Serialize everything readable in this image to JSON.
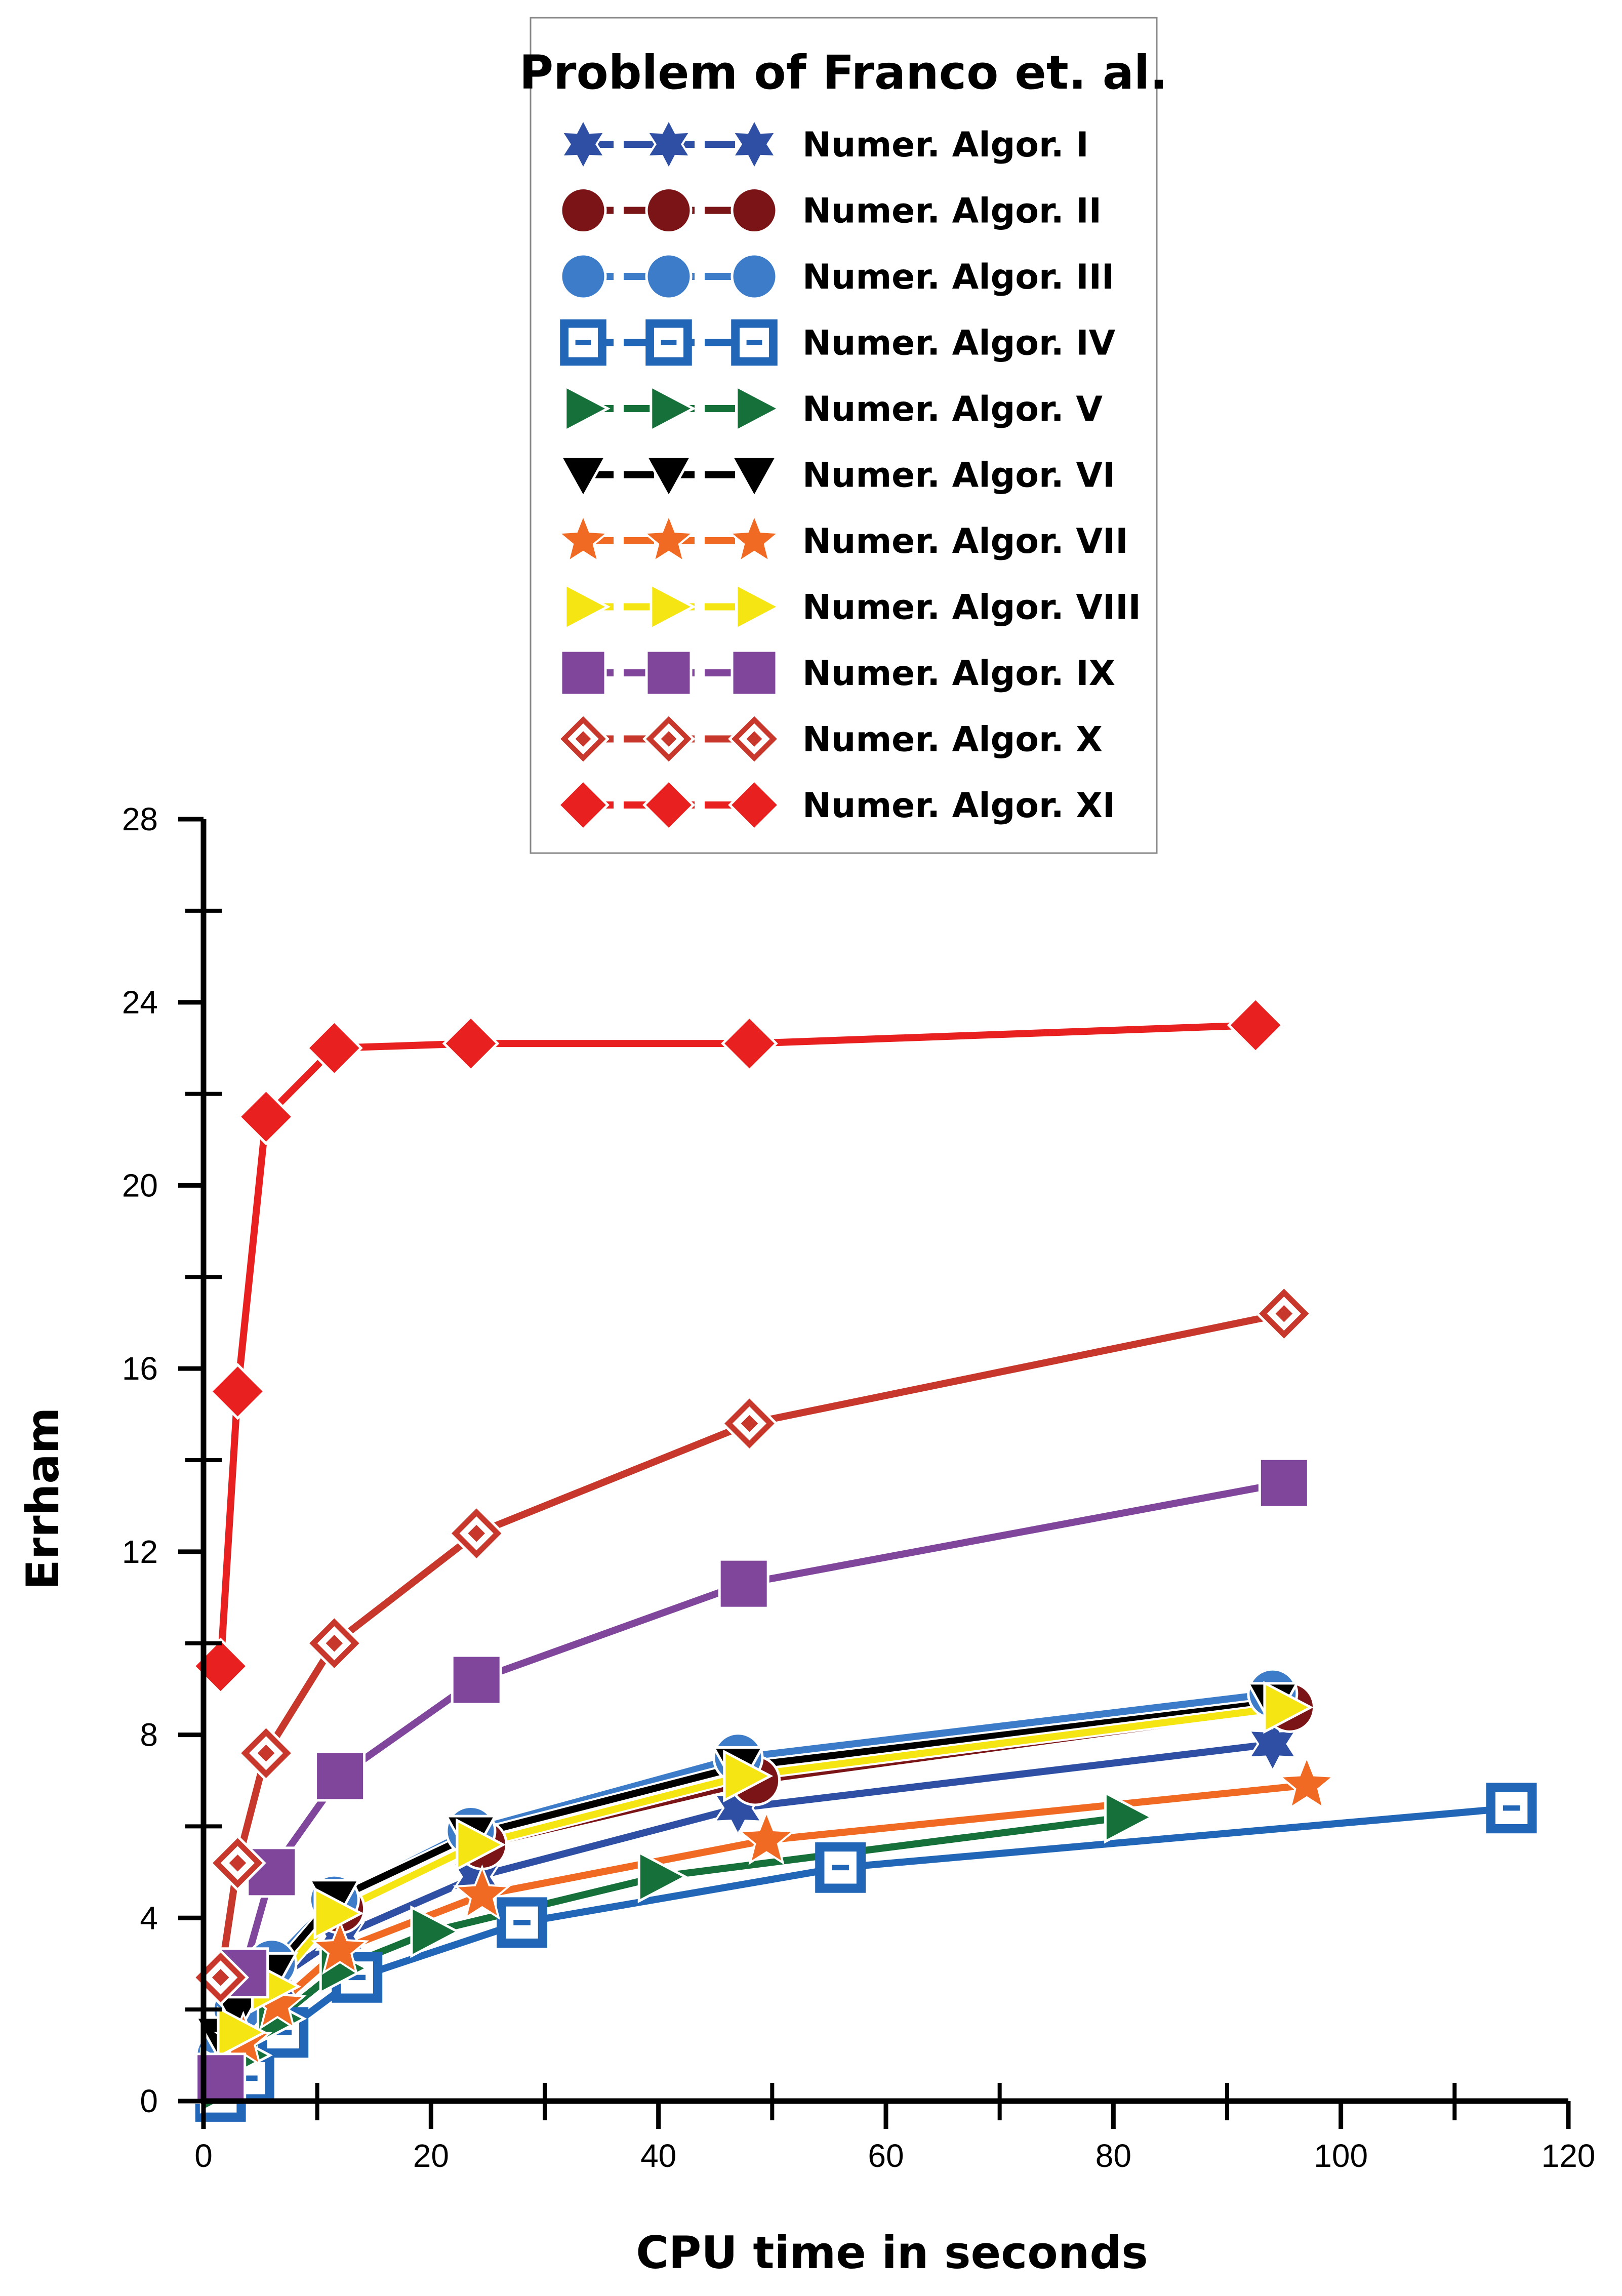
{
  "chart_data": {
    "type": "line",
    "title": "Problem of Franco et. al.",
    "xlabel": "CPU time in seconds",
    "ylabel": "Errham",
    "xlim": [
      0,
      120
    ],
    "ylim": [
      0,
      28
    ],
    "xticks": [
      0,
      20,
      40,
      60,
      80,
      100,
      120
    ],
    "yticks": [
      0,
      4,
      8,
      12,
      16,
      20,
      24,
      28
    ],
    "grid": false,
    "legend_position": "top-center",
    "series": [
      {
        "name": "Numer. Algor. I",
        "color": "#2E4FA3",
        "marker": "star6",
        "x": [
          1.5,
          3,
          6,
          12,
          24,
          47,
          94
        ],
        "y": [
          0.8,
          1.6,
          2.6,
          3.6,
          4.9,
          6.4,
          7.8
        ]
      },
      {
        "name": "Numer. Algor. II",
        "color": "#7B1416",
        "marker": "circle",
        "x": [
          1.5,
          3,
          6,
          12,
          24.5,
          48.5,
          95.5
        ],
        "y": [
          1.0,
          1.9,
          2.9,
          4.2,
          5.6,
          7.0,
          8.6
        ]
      },
      {
        "name": "Numer. Algor. III",
        "color": "#3D7CC9",
        "marker": "circle",
        "x": [
          1.5,
          3,
          6,
          11.5,
          23.5,
          47,
          94
        ],
        "y": [
          1.0,
          2.0,
          3.0,
          4.4,
          5.9,
          7.5,
          8.9
        ]
      },
      {
        "name": "Numer. Algor. IV",
        "color": "#2266B8",
        "marker": "square-open",
        "x": [
          1.5,
          4,
          7,
          13.5,
          28,
          56,
          115
        ],
        "y": [
          0.1,
          0.5,
          1.5,
          2.7,
          3.9,
          5.1,
          6.4
        ]
      },
      {
        "name": "Numer. Algor. V",
        "color": "#16703A",
        "marker": "triangle-right",
        "x": [
          1.5,
          3.5,
          6.5,
          12,
          20,
          40,
          81
        ],
        "y": [
          0.3,
          1.0,
          1.8,
          2.9,
          3.7,
          4.9,
          6.2
        ]
      },
      {
        "name": "Numer. Algor. VI",
        "color": "#000000",
        "marker": "triangle-down",
        "x": [
          1.5,
          3,
          6,
          11.5,
          23.5,
          47,
          94
        ],
        "y": [
          1.4,
          2.0,
          2.8,
          4.4,
          5.8,
          7.3,
          8.7
        ]
      },
      {
        "name": "Numer. Algor. VII",
        "color": "#F06A23",
        "marker": "star5",
        "x": [
          1.5,
          3.5,
          6.5,
          12,
          24.5,
          49.5,
          97
        ],
        "y": [
          0.5,
          1.3,
          2.1,
          3.3,
          4.5,
          5.7,
          6.9
        ]
      },
      {
        "name": "Numer. Algor. VIII",
        "color": "#F5E613",
        "marker": "triangle-right",
        "x": [
          1.5,
          3,
          6,
          11.5,
          24,
          47.5,
          95
        ],
        "y": [
          0.6,
          1.5,
          2.5,
          4.1,
          5.6,
          7.1,
          8.6
        ]
      },
      {
        "name": "Numer. Algor. IX",
        "color": "#7F469C",
        "marker": "square",
        "x": [
          1.5,
          3.5,
          6,
          12,
          24,
          47.5,
          95
        ],
        "y": [
          0.5,
          2.8,
          5.0,
          7.1,
          9.2,
          11.3,
          13.5
        ]
      },
      {
        "name": "Numer. Algor. X",
        "color": "#C8372B",
        "marker": "diamond-open",
        "x": [
          1.5,
          3,
          5.5,
          11.5,
          24,
          48,
          95
        ],
        "y": [
          2.7,
          5.2,
          7.6,
          10.0,
          12.4,
          14.8,
          17.2
        ]
      },
      {
        "name": "Numer. Algor. XI",
        "color": "#E8201F",
        "marker": "diamond",
        "x": [
          1.5,
          3,
          5.5,
          11.5,
          23.5,
          48,
          92.5
        ],
        "y": [
          9.5,
          15.5,
          21.5,
          23.0,
          23.1,
          23.1,
          23.5
        ]
      }
    ]
  }
}
